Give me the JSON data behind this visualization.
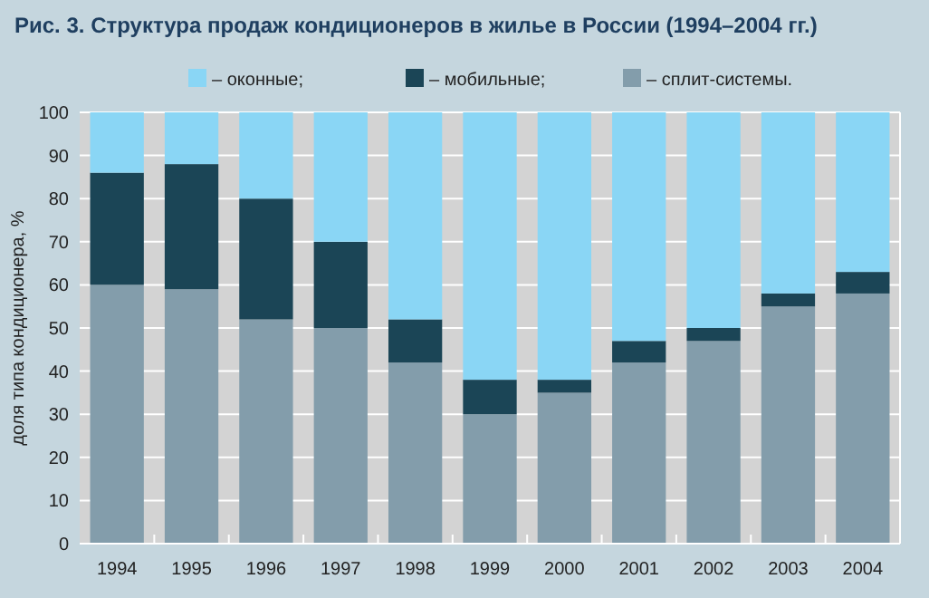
{
  "chart_data": {
    "type": "bar",
    "title": "Рис. 3. Структура продаж кондиционеров в жилье в России (1994–2004 гг.)",
    "ylabel": "доля типа кондиционера, %",
    "categories": [
      "1994",
      "1995",
      "1996",
      "1997",
      "1998",
      "1999",
      "2000",
      "2001",
      "2002",
      "2003",
      "2004"
    ],
    "stacked": true,
    "series": [
      {
        "name": "– сплит-системы.",
        "color": "#839dab",
        "values": [
          60,
          59,
          52,
          50,
          42,
          30,
          35,
          42,
          47,
          55,
          58
        ]
      },
      {
        "name": "– мобильные;",
        "color": "#1b4556",
        "values": [
          26,
          29,
          28,
          20,
          10,
          8,
          3,
          5,
          3,
          3,
          5
        ]
      },
      {
        "name": "– оконные;",
        "color": "#8ad6f5",
        "values": [
          14,
          12,
          20,
          30,
          48,
          62,
          62,
          53,
          50,
          42,
          37
        ]
      }
    ],
    "ylim": [
      0,
      100
    ],
    "yticks": [
      0,
      10,
      20,
      30,
      40,
      50,
      60,
      70,
      80,
      90,
      100
    ],
    "grid": "y",
    "legend": "top"
  }
}
